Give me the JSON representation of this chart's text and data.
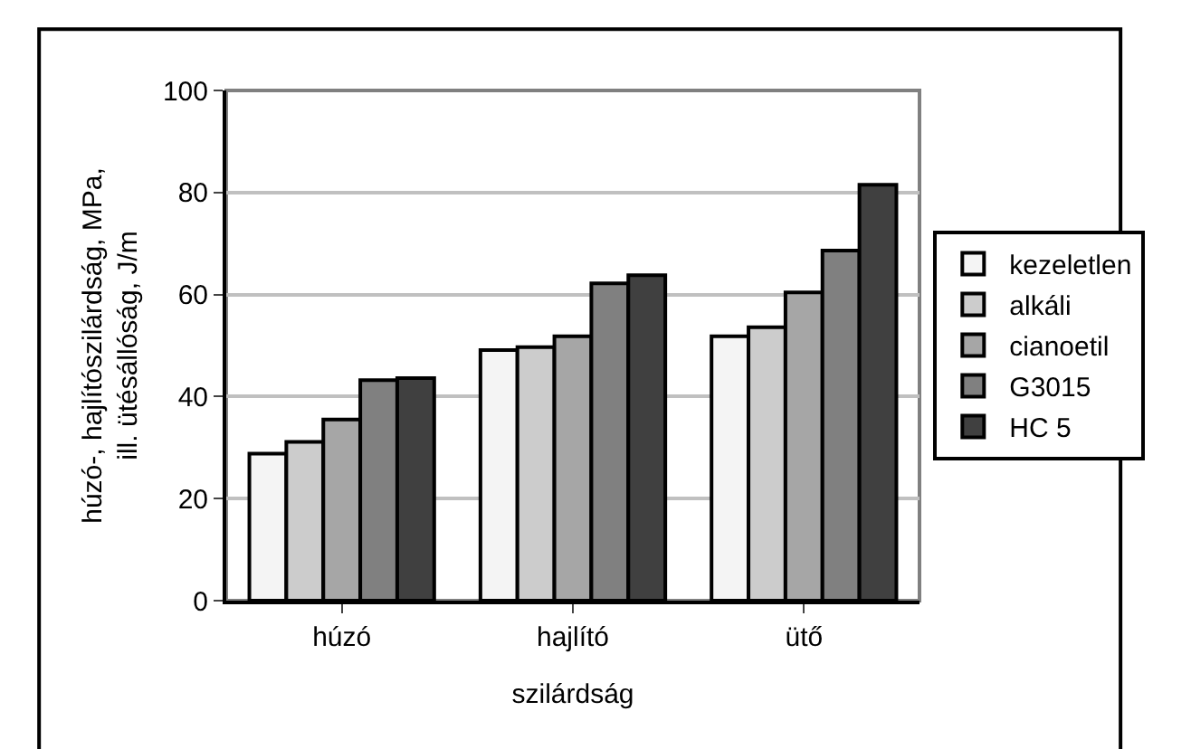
{
  "chart_data": {
    "type": "bar",
    "xlabel": "szilárdság",
    "ylabel": "húzó-, hajlítószilárdság, MPa,\nill. ütésállóság, J/m",
    "categories": [
      "húzó",
      "hajlító",
      "ütő"
    ],
    "series": [
      {
        "name": "kezeletlen",
        "color": "#f4f4f4",
        "values": [
          28.8,
          49.1,
          51.8
        ]
      },
      {
        "name": "alkáli",
        "color": "#cccccc",
        "values": [
          31.1,
          49.7,
          53.6
        ]
      },
      {
        "name": "cianoetil",
        "color": "#a6a6a6",
        "values": [
          35.5,
          51.8,
          60.4
        ]
      },
      {
        "name": "G3015",
        "color": "#808080",
        "values": [
          43.2,
          62.2,
          68.6
        ]
      },
      {
        "name": "HC 5",
        "color": "#404040",
        "values": [
          43.6,
          63.8,
          81.5
        ]
      }
    ],
    "ylim": [
      0,
      100
    ],
    "yticks": [
      0,
      20,
      40,
      60,
      80,
      100
    ],
    "grid": "y",
    "legend": "right"
  }
}
